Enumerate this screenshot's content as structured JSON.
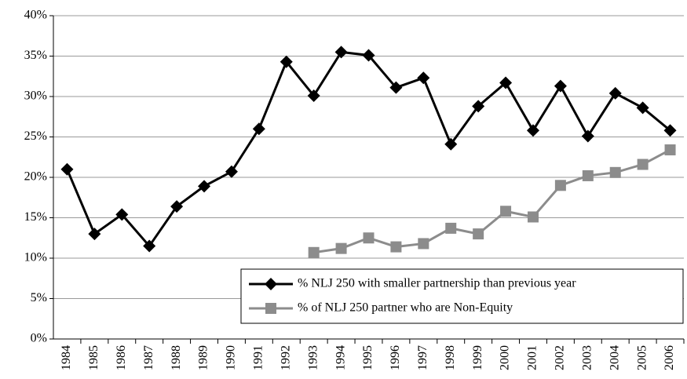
{
  "chart_data": {
    "type": "line",
    "categories": [
      "1984",
      "1985",
      "1986",
      "1987",
      "1988",
      "1989",
      "1990",
      "1991",
      "1992",
      "1993",
      "1994",
      "1995",
      "1996",
      "1997",
      "1998",
      "1999",
      "2000",
      "2001",
      "2002",
      "2003",
      "2004",
      "2005",
      "2006"
    ],
    "series": [
      {
        "name": "% NLJ 250 with smaller partnership than previous year",
        "color": "#000000",
        "marker": "diamond",
        "values": [
          21.0,
          13.0,
          15.4,
          11.5,
          16.4,
          18.9,
          20.7,
          26.0,
          34.3,
          30.1,
          35.5,
          35.1,
          31.1,
          32.3,
          24.1,
          28.8,
          31.7,
          25.8,
          31.3,
          25.1,
          30.4,
          28.6,
          25.8
        ]
      },
      {
        "name": "% of NLJ 250 partner who are Non-Equity",
        "color": "#8c8c8c",
        "marker": "square",
        "values": [
          null,
          null,
          null,
          null,
          null,
          null,
          null,
          null,
          null,
          10.7,
          11.2,
          12.5,
          11.4,
          11.8,
          13.7,
          13.0,
          15.8,
          15.1,
          19.0,
          20.2,
          20.6,
          21.6,
          23.4
        ]
      }
    ],
    "ylim": [
      0,
      40
    ],
    "yticks": [
      {
        "value": 0,
        "label": "0%"
      },
      {
        "value": 5,
        "label": "5%"
      },
      {
        "value": 10,
        "label": "10%"
      },
      {
        "value": 15,
        "label": "15%"
      },
      {
        "value": 20,
        "label": "20%"
      },
      {
        "value": 25,
        "label": "25%"
      },
      {
        "value": 30,
        "label": "30%"
      },
      {
        "value": 35,
        "label": "35%"
      },
      {
        "value": 40,
        "label": "40%"
      }
    ],
    "grid": true,
    "legend": "lower right"
  }
}
